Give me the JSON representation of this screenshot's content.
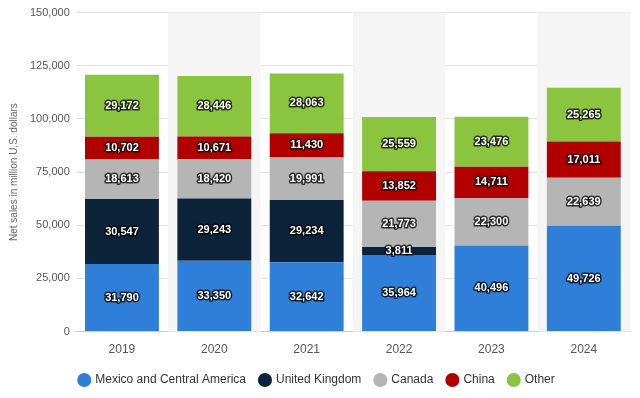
{
  "chart_data": {
    "type": "bar",
    "stacked": true,
    "y_label": "Net sales in million U.S. dollars",
    "categories": [
      "2019",
      "2020",
      "2021",
      "2022",
      "2023",
      "2024"
    ],
    "series": [
      {
        "name": "Mexico and Central America",
        "color": "#2f7ed8",
        "values": [
          31790,
          33350,
          32642,
          35964,
          40496,
          49726
        ],
        "value_labels": [
          "31,790",
          "33,350",
          "32,642",
          "35,964",
          "40,496",
          "49,726"
        ]
      },
      {
        "name": "United Kingdom",
        "color": "#0d233a",
        "values": [
          30547,
          29243,
          29234,
          3811,
          null,
          null
        ],
        "value_labels": [
          "30,547",
          "29,243",
          "29,234",
          "3,811",
          null,
          null
        ]
      },
      {
        "name": "Canada",
        "color": "#b5b5b5",
        "values": [
          18613,
          18420,
          19991,
          21773,
          22300,
          22639
        ],
        "value_labels": [
          "18,613",
          "18,420",
          "19,991",
          "21,773",
          "22,300",
          "22,639"
        ]
      },
      {
        "name": "China",
        "color": "#b20000",
        "values": [
          10702,
          10671,
          11430,
          13852,
          14711,
          17011
        ],
        "value_labels": [
          "10,702",
          "10,671",
          "11,430",
          "13,852",
          "14,711",
          "17,011"
        ]
      },
      {
        "name": "Other",
        "color": "#8bc43f",
        "values": [
          29172,
          28446,
          28063,
          25559,
          23476,
          25265
        ],
        "value_labels": [
          "29,172",
          "28,446",
          "28,063",
          "25,559",
          "23,476",
          "25,265"
        ]
      }
    ],
    "ylim": [
      0,
      150000
    ],
    "yticks": [
      0,
      {
        "value": 25000,
        "label": "25,000"
      },
      {
        "value": 50000,
        "label": "50,000"
      },
      {
        "value": 75000,
        "label": "75,000"
      },
      {
        "value": 100000,
        "label": "100,000"
      },
      {
        "value": 125000,
        "label": "125,000"
      },
      {
        "value": 150000,
        "label": "150,000"
      }
    ],
    "grid": true,
    "legend": "bottom",
    "data_labels": true
  }
}
